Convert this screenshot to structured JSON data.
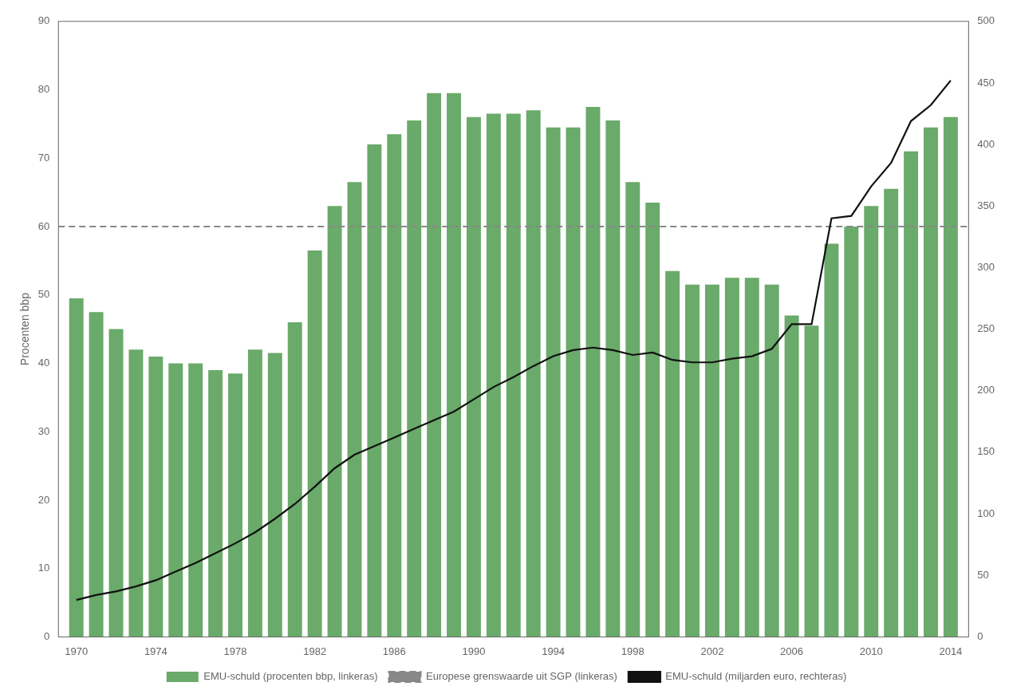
{
  "chart_data": {
    "type": "bar",
    "x": [
      1970,
      1971,
      1972,
      1973,
      1974,
      1975,
      1976,
      1977,
      1978,
      1979,
      1980,
      1981,
      1982,
      1983,
      1984,
      1985,
      1986,
      1987,
      1988,
      1989,
      1990,
      1991,
      1992,
      1993,
      1994,
      1995,
      1996,
      1997,
      1998,
      1999,
      2000,
      2001,
      2002,
      2003,
      2004,
      2005,
      2006,
      2007,
      2008,
      2009,
      2010,
      2011,
      2012,
      2013,
      2014
    ],
    "series": [
      {
        "name": "EMU-schuld (procenten bbp, linkeras)",
        "type": "bar",
        "color": "#6aaa6a",
        "values": [
          49.5,
          47.5,
          45.0,
          42.0,
          41.0,
          40.0,
          40.0,
          39.0,
          38.5,
          42.0,
          41.5,
          46.0,
          56.5,
          63.0,
          66.5,
          72.0,
          73.5,
          75.5,
          79.5,
          79.5,
          76.0,
          76.5,
          76.5,
          77.0,
          74.5,
          74.5,
          77.5,
          75.5,
          66.5,
          63.5,
          53.5,
          51.5,
          51.5,
          52.5,
          52.5,
          51.5,
          47.0,
          45.5,
          57.5,
          60.0,
          63.0,
          65.5,
          71.0,
          74.5,
          76.0
        ]
      },
      {
        "name": "EMU-schuld (miljarden euro, rechteras)",
        "type": "line",
        "color": "#111111",
        "line_style": "solid",
        "axis": "y2",
        "values": [
          30,
          34,
          37,
          41,
          46,
          53,
          60,
          68,
          76,
          85,
          96,
          108,
          122,
          137,
          148,
          155,
          162,
          169,
          176,
          183,
          193,
          203,
          211,
          220,
          228,
          233,
          235,
          233,
          229,
          231,
          225,
          223,
          223,
          226,
          228,
          234,
          254,
          254,
          340,
          342,
          366,
          385,
          419,
          432,
          452
        ]
      }
    ],
    "reference_lines": [
      {
        "name": "Europese grenswaarde uit SGP (linkeras)",
        "value": 60,
        "color": "#888888",
        "line_style": "dashed"
      }
    ],
    "ylabel": "Procenten bbp",
    "xlim": [
      1969.1,
      2014.9
    ],
    "xticks": [
      1970,
      1974,
      1978,
      1982,
      1986,
      1990,
      1994,
      1998,
      2002,
      2006,
      2010,
      2014
    ],
    "ylim": [
      0,
      90
    ],
    "yticks": [
      0,
      10,
      20,
      30,
      40,
      50,
      60,
      70,
      80,
      90
    ],
    "y2lim": [
      0,
      500
    ],
    "y2ticks": [
      0,
      50,
      100,
      150,
      200,
      250,
      300,
      350,
      400,
      450,
      500
    ],
    "grid": false,
    "legend": "bottom"
  }
}
